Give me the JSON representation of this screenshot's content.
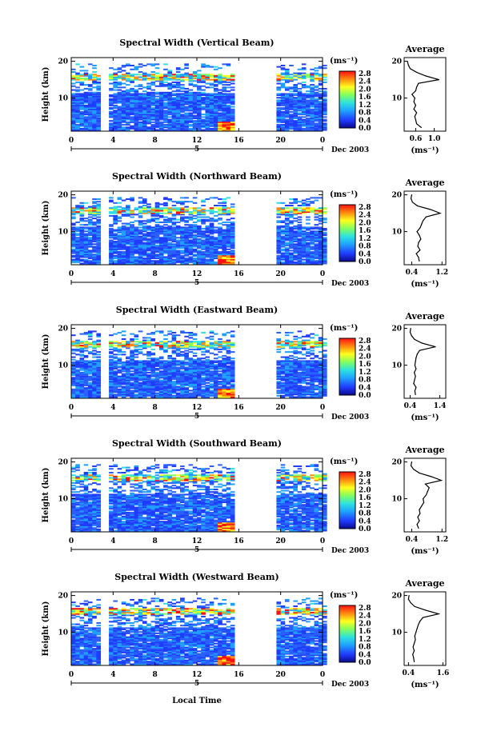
{
  "figure": {
    "xlabel": "Local Time",
    "date_label": "Dec 2003",
    "day_label": "5",
    "ylabel": "Height (km)",
    "avg_title": "Average",
    "unit_label": "(ms⁻¹)",
    "colorbar_ticks": [
      "2.8",
      "2.4",
      "2.0",
      "1.6",
      "1.2",
      "0.8",
      "0.4",
      "0.0"
    ],
    "x_ticks": [
      "0",
      "4",
      "8",
      "12",
      "16",
      "20",
      "0"
    ],
    "y_ticks": [
      "20",
      "10"
    ]
  },
  "chart_data": [
    {
      "type": "heatmap",
      "title": "Spectral Width (Vertical Beam)",
      "colorbar_range": [
        0.0,
        2.8
      ],
      "xlim": [
        0,
        24
      ],
      "ylim": [
        1,
        21
      ],
      "data_gaps_hours": [
        [
          3.0,
          3.3
        ],
        [
          15.8,
          19.5
        ]
      ],
      "high_value_layer_km": 15.5,
      "average_profile": {
        "xticks": [
          "0.6",
          "1.0"
        ],
        "xlim": [
          0.35,
          1.25
        ],
        "heights": [
          2,
          3,
          4,
          5,
          6,
          7,
          8,
          9,
          10,
          11,
          12,
          13,
          14,
          15,
          16,
          17,
          18,
          19,
          20
        ],
        "values": [
          0.72,
          0.62,
          0.6,
          0.58,
          0.62,
          0.56,
          0.6,
          0.56,
          0.58,
          0.52,
          0.6,
          0.62,
          0.66,
          1.1,
          0.82,
          0.62,
          0.48,
          0.44,
          0.42
        ]
      }
    },
    {
      "type": "heatmap",
      "title": "Spectral Width (Northward Beam)",
      "colorbar_range": [
        0.0,
        2.8
      ],
      "xlim": [
        0,
        24
      ],
      "ylim": [
        1,
        21
      ],
      "data_gaps_hours": [
        [
          3.0,
          3.3
        ],
        [
          15.8,
          19.5
        ]
      ],
      "high_value_layer_km": 15.5,
      "average_profile": {
        "xticks": [
          "0.4",
          "1.2"
        ],
        "xlim": [
          0.2,
          1.3
        ],
        "heights": [
          2,
          3,
          4,
          5,
          6,
          7,
          8,
          9,
          10,
          11,
          12,
          13,
          14,
          15,
          16,
          17,
          18,
          19,
          20
        ],
        "values": [
          0.6,
          0.58,
          0.52,
          0.62,
          0.56,
          0.58,
          0.64,
          0.6,
          0.54,
          0.62,
          0.66,
          0.7,
          0.78,
          1.15,
          0.9,
          0.55,
          0.42,
          0.38,
          0.4
        ]
      }
    },
    {
      "type": "heatmap",
      "title": "Spectral Width (Eastward Beam)",
      "colorbar_range": [
        0.0,
        2.8
      ],
      "xlim": [
        0,
        24
      ],
      "ylim": [
        1,
        21
      ],
      "data_gaps_hours": [
        [
          3.0,
          3.3
        ],
        [
          15.8,
          19.5
        ]
      ],
      "high_value_layer_km": 15.5,
      "average_profile": {
        "xticks": [
          "0.4",
          "1.4"
        ],
        "xlim": [
          0.2,
          1.6
        ],
        "heights": [
          2,
          3,
          4,
          5,
          6,
          7,
          8,
          9,
          10,
          11,
          12,
          13,
          14,
          15,
          16,
          17,
          18,
          19,
          20
        ],
        "values": [
          0.58,
          0.56,
          0.6,
          0.52,
          0.55,
          0.58,
          0.54,
          0.6,
          0.56,
          0.58,
          0.6,
          0.64,
          0.72,
          1.25,
          0.8,
          0.55,
          0.45,
          0.4,
          0.42
        ]
      }
    },
    {
      "type": "heatmap",
      "title": "Spectral Width (Southward Beam)",
      "colorbar_range": [
        0.0,
        2.8
      ],
      "xlim": [
        0,
        24
      ],
      "ylim": [
        1,
        21
      ],
      "data_gaps_hours": [
        [
          3.0,
          3.3
        ],
        [
          15.8,
          19.5
        ]
      ],
      "high_value_layer_km": 15.5,
      "average_profile": {
        "xticks": [
          "0.4",
          "1.2"
        ],
        "xlim": [
          0.2,
          1.3
        ],
        "heights": [
          2,
          3,
          4,
          5,
          6,
          7,
          8,
          9,
          10,
          11,
          12,
          13,
          14,
          15,
          16,
          17,
          18,
          19,
          20
        ],
        "values": [
          0.58,
          0.54,
          0.6,
          0.56,
          0.62,
          0.6,
          0.66,
          0.72,
          0.7,
          0.78,
          0.82,
          0.86,
          0.76,
          1.18,
          0.92,
          0.6,
          0.45,
          0.38,
          0.4
        ]
      }
    },
    {
      "type": "heatmap",
      "title": "Spectral Width (Westward Beam)",
      "colorbar_range": [
        0.0,
        2.8
      ],
      "xlim": [
        0,
        24
      ],
      "ylim": [
        1,
        21
      ],
      "data_gaps_hours": [
        [
          3.0,
          3.3
        ],
        [
          15.8,
          19.5
        ]
      ],
      "high_value_layer_km": 15.5,
      "average_profile": {
        "xticks": [
          "0.4",
          "1.6"
        ],
        "xlim": [
          0.25,
          1.7
        ],
        "heights": [
          2,
          3,
          4,
          5,
          6,
          7,
          8,
          9,
          10,
          11,
          12,
          13,
          14,
          15,
          16,
          17,
          18,
          19,
          20
        ],
        "values": [
          0.6,
          0.58,
          0.55,
          0.6,
          0.56,
          0.6,
          0.64,
          0.62,
          0.66,
          0.7,
          0.74,
          0.8,
          0.9,
          1.45,
          1.0,
          0.62,
          0.48,
          0.4,
          0.42
        ]
      }
    }
  ]
}
